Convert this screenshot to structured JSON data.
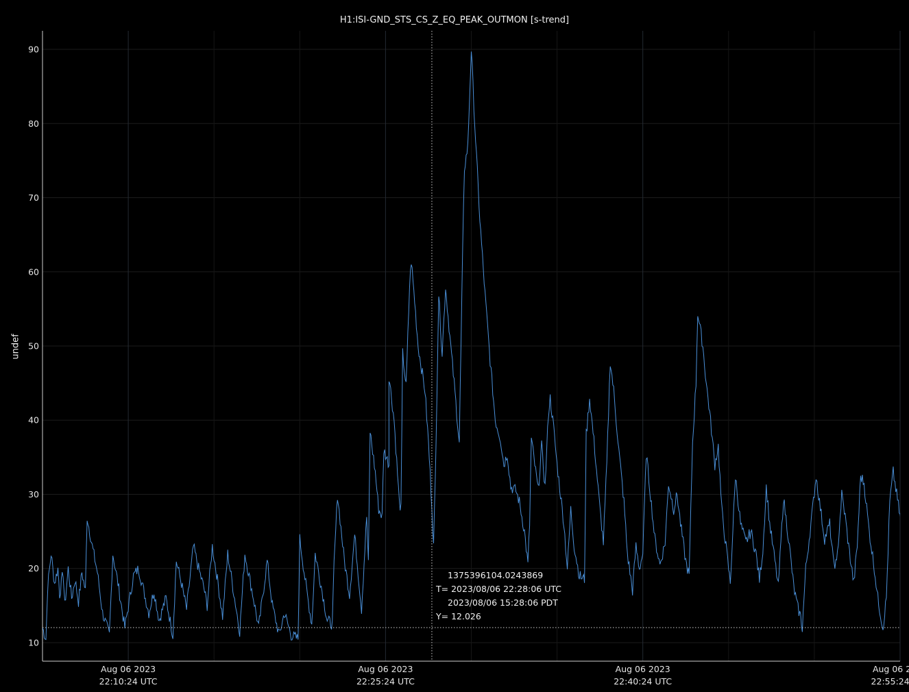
{
  "chart_data": {
    "type": "line",
    "title": "H1:ISI-GND_STS_CS_Z_EQ_PEAK_OUTMON [s-trend]",
    "ylabel": "undef",
    "xlabel": "",
    "ylim": [
      7.5,
      92.5
    ],
    "yticks": [
      10,
      20,
      30,
      40,
      50,
      60,
      70,
      80,
      90
    ],
    "x_unit": "minutes after 2023-08-06 22:05 UTC",
    "xlim": [
      0,
      50
    ],
    "xticks": [
      {
        "x": 5.0,
        "line1": "Aug 06 2023",
        "line2": "22:10:24 UTC"
      },
      {
        "x": 20.0,
        "line1": "Aug 06 2023",
        "line2": "22:25:24 UTC"
      },
      {
        "x": 35.0,
        "line1": "Aug 06 2023",
        "line2": "22:40:24 UTC"
      },
      {
        "x": 50.0,
        "line1": "Aug 06 2023",
        "line2": "22:55:24 UTC"
      }
    ],
    "grid": true,
    "series_color": "#4a90d9",
    "series": [
      {
        "points": [
          [
            0.0,
            12.0
          ],
          [
            0.2,
            10.5
          ],
          [
            0.3,
            17.5
          ],
          [
            0.5,
            22.0
          ],
          [
            0.7,
            18.0
          ],
          [
            0.9,
            20.0
          ],
          [
            1.0,
            16.5
          ],
          [
            1.2,
            19.5
          ],
          [
            1.3,
            15.0
          ],
          [
            1.5,
            20.0
          ],
          [
            1.7,
            16.0
          ],
          [
            1.9,
            18.5
          ],
          [
            2.1,
            15.5
          ],
          [
            2.3,
            19.5
          ],
          [
            2.5,
            17.0
          ],
          [
            2.6,
            27.0
          ],
          [
            2.9,
            23.0
          ],
          [
            3.2,
            19.5
          ],
          [
            3.5,
            14.0
          ],
          [
            3.9,
            11.0
          ],
          [
            4.1,
            22.0
          ],
          [
            4.4,
            18.0
          ],
          [
            4.8,
            12.0
          ],
          [
            5.3,
            19.0
          ],
          [
            5.6,
            20.0
          ],
          [
            5.9,
            17.0
          ],
          [
            6.2,
            14.0
          ],
          [
            6.5,
            17.0
          ],
          [
            6.8,
            13.0
          ],
          [
            7.2,
            16.0
          ],
          [
            7.6,
            11.0
          ],
          [
            7.8,
            21.0
          ],
          [
            8.1,
            18.0
          ],
          [
            8.4,
            14.5
          ],
          [
            8.8,
            23.0
          ],
          [
            9.1,
            20.0
          ],
          [
            9.4,
            17.5
          ],
          [
            9.6,
            15.0
          ],
          [
            9.9,
            23.0
          ],
          [
            10.2,
            18.5
          ],
          [
            10.5,
            13.5
          ],
          [
            10.8,
            22.0
          ],
          [
            11.2,
            16.0
          ],
          [
            11.5,
            11.5
          ],
          [
            11.8,
            22.0
          ],
          [
            12.3,
            16.0
          ],
          [
            12.6,
            12.0
          ],
          [
            13.1,
            21.0
          ],
          [
            13.4,
            15.0
          ],
          [
            13.8,
            11.0
          ],
          [
            14.1,
            14.0
          ],
          [
            14.5,
            11.0
          ],
          [
            14.9,
            10.5
          ],
          [
            15.0,
            24.0
          ],
          [
            15.4,
            17.0
          ],
          [
            15.7,
            12.5
          ],
          [
            15.9,
            22.0
          ],
          [
            16.3,
            17.0
          ],
          [
            16.6,
            13.0
          ],
          [
            16.9,
            12.5
          ],
          [
            17.0,
            20.5
          ],
          [
            17.2,
            30.0
          ],
          [
            17.6,
            21.0
          ],
          [
            17.9,
            16.5
          ],
          [
            18.2,
            24.5
          ],
          [
            18.6,
            14.5
          ],
          [
            18.9,
            27.0
          ],
          [
            19.0,
            20.5
          ],
          [
            19.1,
            38.5
          ],
          [
            19.4,
            33.0
          ],
          [
            19.6,
            28.0
          ],
          [
            19.8,
            27.0
          ],
          [
            19.9,
            36.0
          ],
          [
            20.2,
            34.0
          ],
          [
            20.2,
            46.0
          ],
          [
            20.5,
            40.0
          ],
          [
            20.8,
            29.0
          ],
          [
            20.9,
            28.0
          ],
          [
            21.0,
            49.0
          ],
          [
            21.2,
            44.5
          ],
          [
            21.4,
            58.0
          ],
          [
            21.5,
            61.5
          ],
          [
            21.7,
            56.0
          ],
          [
            21.9,
            50.0
          ],
          [
            22.1,
            47.0
          ],
          [
            22.3,
            44.0
          ],
          [
            22.5,
            37.0
          ],
          [
            22.7,
            28.5
          ],
          [
            22.8,
            23.0
          ],
          [
            22.9,
            32.0
          ],
          [
            23.1,
            57.0
          ],
          [
            23.3,
            49.0
          ],
          [
            23.5,
            58.0
          ],
          [
            23.8,
            50.0
          ],
          [
            24.0,
            45.0
          ],
          [
            24.3,
            37.0
          ],
          [
            24.5,
            63.0
          ],
          [
            24.6,
            74.0
          ],
          [
            24.8,
            77.0
          ],
          [
            25.0,
            90.0
          ],
          [
            25.2,
            80.0
          ],
          [
            25.5,
            67.0
          ],
          [
            25.8,
            57.0
          ],
          [
            26.1,
            48.0
          ],
          [
            26.4,
            40.0
          ],
          [
            26.7,
            37.5
          ],
          [
            26.9,
            34.0
          ],
          [
            27.1,
            35.5
          ],
          [
            27.3,
            31.0
          ],
          [
            27.6,
            30.5
          ],
          [
            27.8,
            29.0
          ],
          [
            28.1,
            25.0
          ],
          [
            28.3,
            20.5
          ],
          [
            28.4,
            26.0
          ],
          [
            28.5,
            37.5
          ],
          [
            28.7,
            34.0
          ],
          [
            28.9,
            30.5
          ],
          [
            29.1,
            36.5
          ],
          [
            29.3,
            31.0
          ],
          [
            29.5,
            41.0
          ],
          [
            29.6,
            43.0
          ],
          [
            29.8,
            39.0
          ],
          [
            30.0,
            34.0
          ],
          [
            30.4,
            26.0
          ],
          [
            30.6,
            20.0
          ],
          [
            30.8,
            28.0
          ],
          [
            31.0,
            23.0
          ],
          [
            31.3,
            19.0
          ],
          [
            31.6,
            18.5
          ],
          [
            31.7,
            38.0
          ],
          [
            31.9,
            43.0
          ],
          [
            32.2,
            36.0
          ],
          [
            32.5,
            28.0
          ],
          [
            32.7,
            23.5
          ],
          [
            32.9,
            34.0
          ],
          [
            33.1,
            48.0
          ],
          [
            33.3,
            44.0
          ],
          [
            33.6,
            36.0
          ],
          [
            33.9,
            29.0
          ],
          [
            34.1,
            22.0
          ],
          [
            34.4,
            17.0
          ],
          [
            34.6,
            23.0
          ],
          [
            34.8,
            20.0
          ],
          [
            35.0,
            22.0
          ],
          [
            35.2,
            35.5
          ],
          [
            35.4,
            31.0
          ],
          [
            35.7,
            24.0
          ],
          [
            36.0,
            20.5
          ],
          [
            36.3,
            23.5
          ],
          [
            36.5,
            31.5
          ],
          [
            36.8,
            28.0
          ],
          [
            37.0,
            30.0
          ],
          [
            37.2,
            26.0
          ],
          [
            37.5,
            21.0
          ],
          [
            37.7,
            19.0
          ],
          [
            37.9,
            37.0
          ],
          [
            38.1,
            45.0
          ],
          [
            38.2,
            54.5
          ],
          [
            38.5,
            50.0
          ],
          [
            38.7,
            45.0
          ],
          [
            38.9,
            41.0
          ],
          [
            39.2,
            34.0
          ],
          [
            39.4,
            36.5
          ],
          [
            39.6,
            28.0
          ],
          [
            39.8,
            24.0
          ],
          [
            40.1,
            18.0
          ],
          [
            40.4,
            32.5
          ],
          [
            40.7,
            26.0
          ],
          [
            41.0,
            23.5
          ],
          [
            41.3,
            25.0
          ],
          [
            41.6,
            22.0
          ],
          [
            41.8,
            18.5
          ],
          [
            42.0,
            22.5
          ],
          [
            42.2,
            31.0
          ],
          [
            42.4,
            26.0
          ],
          [
            42.7,
            21.0
          ],
          [
            42.9,
            17.5
          ],
          [
            43.2,
            29.5
          ],
          [
            43.5,
            24.0
          ],
          [
            43.8,
            17.5
          ],
          [
            44.0,
            15.0
          ],
          [
            44.2,
            13.5
          ],
          [
            44.3,
            12.0
          ],
          [
            44.5,
            20.0
          ],
          [
            44.7,
            24.0
          ],
          [
            44.9,
            28.0
          ],
          [
            45.1,
            32.5
          ],
          [
            45.3,
            29.0
          ],
          [
            45.6,
            24.0
          ],
          [
            45.9,
            26.0
          ],
          [
            46.1,
            21.0
          ],
          [
            46.3,
            20.5
          ],
          [
            46.6,
            30.0
          ],
          [
            46.8,
            27.0
          ],
          [
            47.0,
            23.0
          ],
          [
            47.3,
            18.0
          ],
          [
            47.5,
            23.0
          ],
          [
            47.7,
            32.5
          ],
          [
            47.9,
            31.5
          ],
          [
            48.2,
            25.0
          ],
          [
            48.5,
            20.0
          ],
          [
            48.7,
            16.0
          ],
          [
            49.0,
            12.0
          ],
          [
            49.2,
            16.0
          ],
          [
            49.4,
            29.0
          ],
          [
            49.6,
            33.0
          ],
          [
            49.8,
            30.0
          ],
          [
            50.0,
            27.0
          ],
          [
            50.3,
            23.0
          ],
          [
            50.6,
            19.5
          ],
          [
            50.9,
            16.5
          ],
          [
            51.0,
            16.5
          ]
        ]
      }
    ],
    "cursor": {
      "x": 22.7,
      "y": 12.026,
      "gps_label": "1375396104.0243869",
      "t_utc_label": "T= 2023/08/06 22:28:06 UTC",
      "t_pdt_label": "2023/08/06 15:28:06 PDT",
      "y_label": "Y= 12.026"
    }
  }
}
